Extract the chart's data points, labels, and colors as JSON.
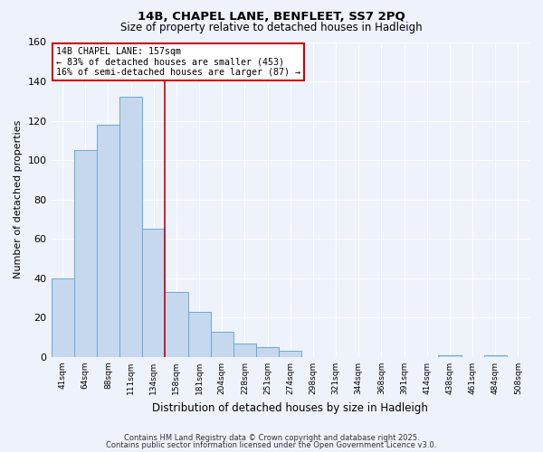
{
  "title": "14B, CHAPEL LANE, BENFLEET, SS7 2PQ",
  "subtitle": "Size of property relative to detached houses in Hadleigh",
  "xlabel": "Distribution of detached houses by size in Hadleigh",
  "ylabel": "Number of detached properties",
  "bin_labels": [
    "41sqm",
    "64sqm",
    "88sqm",
    "111sqm",
    "134sqm",
    "158sqm",
    "181sqm",
    "204sqm",
    "228sqm",
    "251sqm",
    "274sqm",
    "298sqm",
    "321sqm",
    "344sqm",
    "368sqm",
    "391sqm",
    "414sqm",
    "438sqm",
    "461sqm",
    "484sqm",
    "508sqm"
  ],
  "bar_values": [
    40,
    105,
    118,
    132,
    65,
    33,
    23,
    13,
    7,
    5,
    3,
    0,
    0,
    0,
    0,
    0,
    0,
    1,
    0,
    1,
    0
  ],
  "bar_color": "#c5d8ee",
  "bar_edge_color": "#6aaad4",
  "vline_color": "#cc0000",
  "annotation_text": "14B CHAPEL LANE: 157sqm\n← 83% of detached houses are smaller (453)\n16% of semi-detached houses are larger (87) →",
  "annotation_box_color": "#ffffff",
  "annotation_box_edge": "#cc0000",
  "ylim": [
    0,
    160
  ],
  "yticks": [
    0,
    20,
    40,
    60,
    80,
    100,
    120,
    140,
    160
  ],
  "background_color": "#eef2fb",
  "grid_color": "#ffffff",
  "title_fontsize": 9.5,
  "subtitle_fontsize": 8.5,
  "footer_line1": "Contains HM Land Registry data © Crown copyright and database right 2025.",
  "footer_line2": "Contains public sector information licensed under the Open Government Licence v3.0."
}
